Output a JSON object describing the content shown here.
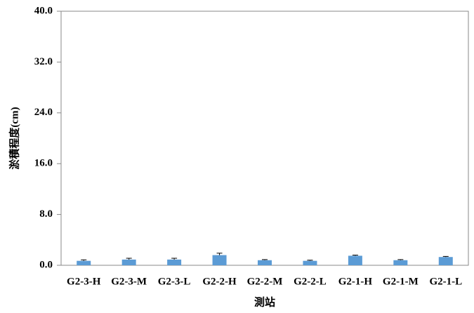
{
  "chart_data": {
    "type": "bar",
    "y_label": "淤積程度(cm)",
    "x_label": "測站",
    "categories": [
      "G2-3-H",
      "G2-3-M",
      "G2-3-L",
      "G2-2-H",
      "G2-2-M",
      "G2-2-L",
      "G2-1-H",
      "G2-1-M",
      "G2-1-L"
    ],
    "values": [
      0.7,
      0.9,
      0.9,
      1.6,
      0.8,
      0.7,
      1.5,
      0.8,
      1.3
    ],
    "errors": [
      0.15,
      0.2,
      0.2,
      0.3,
      0.1,
      0.1,
      0.1,
      0.1,
      0.1
    ],
    "color": "#5b9bd5",
    "ylim": [
      0,
      40
    ],
    "yticks": [
      {
        "value": 0,
        "label": "0.0"
      },
      {
        "value": 8,
        "label": "8.0"
      },
      {
        "value": 16,
        "label": "16.0"
      },
      {
        "value": 24,
        "label": "24.0"
      },
      {
        "value": 32,
        "label": "32.0"
      },
      {
        "value": 40,
        "label": "40.0"
      }
    ],
    "grid": false
  }
}
